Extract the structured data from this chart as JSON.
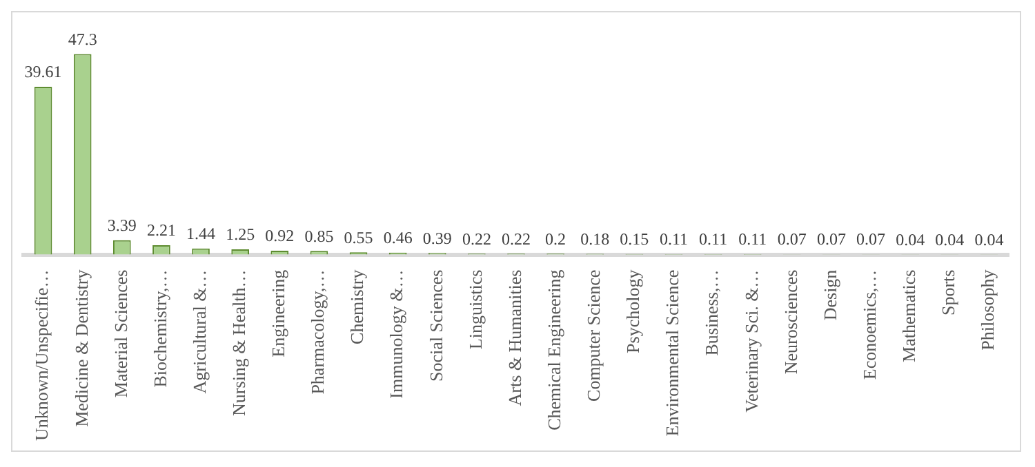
{
  "chart_data": {
    "type": "bar",
    "categories": [
      "Unknown/Unspecifie…",
      "Medicine & Dentistry",
      "Material Sciences",
      "Biochemistry,…",
      "Agricultural &…",
      "Nursing & Health…",
      "Engineering",
      "Pharmacology,…",
      "Chemistry",
      "Immunology &…",
      "Social Sciences",
      "Linguistics",
      "Arts & Humanities",
      "Chemical Engineering",
      "Computer Science",
      "Psychology",
      "Environmental Science",
      "Business,…",
      "Veterinary Sci. &…",
      "Neurosciences",
      "Design",
      "Econoemics,…",
      "Mathematics",
      "Sports",
      "Philosophy"
    ],
    "values": [
      39.61,
      47.3,
      3.39,
      2.21,
      1.44,
      1.25,
      0.92,
      0.85,
      0.55,
      0.46,
      0.39,
      0.22,
      0.22,
      0.2,
      0.18,
      0.15,
      0.11,
      0.11,
      0.11,
      0.07,
      0.07,
      0.07,
      0.04,
      0.04,
      0.04
    ],
    "color": "#a9d18e",
    "data_labels": true
  }
}
